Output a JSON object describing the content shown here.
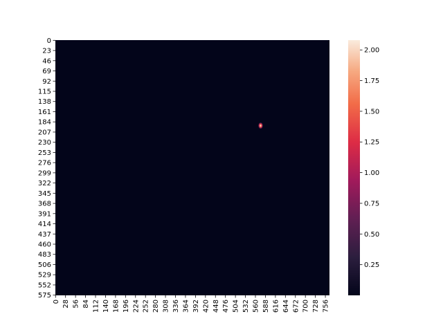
{
  "chart_data": {
    "type": "heatmap",
    "title": "",
    "xlabel": "",
    "ylabel": "",
    "x_tick_labels": [
      "0",
      "28",
      "56",
      "84",
      "112",
      "140",
      "168",
      "196",
      "224",
      "252",
      "280",
      "308",
      "336",
      "364",
      "392",
      "420",
      "448",
      "476",
      "504",
      "532",
      "560",
      "588",
      "616",
      "644",
      "672",
      "700",
      "728",
      "756"
    ],
    "y_tick_labels": [
      "0",
      "23",
      "46",
      "69",
      "92",
      "115",
      "138",
      "161",
      "184",
      "207",
      "230",
      "253",
      "276",
      "299",
      "322",
      "345",
      "368",
      "391",
      "414",
      "437",
      "460",
      "483",
      "506",
      "529",
      "552",
      "575"
    ],
    "data_range": {
      "x": [
        0,
        768
      ],
      "y": [
        0,
        576
      ]
    },
    "colormap": "rocket",
    "colorbar": {
      "ticks": [
        "0.25",
        "0.50",
        "0.75",
        "1.00",
        "1.25",
        "1.50",
        "1.75",
        "2.00"
      ],
      "tick_values": [
        0.25,
        0.5,
        0.75,
        1.0,
        1.25,
        1.5,
        1.75,
        2.0
      ],
      "vmin": 0.0,
      "vmax": 2.08
    },
    "background_value": 0.0,
    "hotspots": [
      {
        "name": "bright-spot",
        "x": 575,
        "y": 193,
        "peak_value": 2.05,
        "spread_x": 4,
        "spread_y": 5
      }
    ]
  }
}
